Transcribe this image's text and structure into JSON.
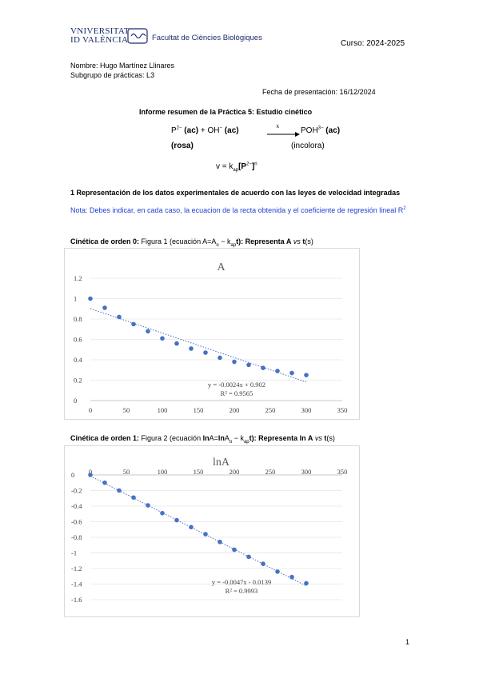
{
  "header": {
    "university_line1": "VNIVERSITAT",
    "university_line2": "ID VALÈNCIA",
    "faculty": "Facultat de Ciències Biològiques",
    "course": "Curso: 2024-2025"
  },
  "student": {
    "name": "Nombre: Hugo Martínez Llinares",
    "subgroup": "Subgrupo de prácticas: L3"
  },
  "date": "Fecha de presentación: 16/12/2024",
  "title": "Informe resumen de la Práctica 5: Estudio cinético",
  "reaction": {
    "r1": "P",
    "r1_charge": "2−",
    "r1_state": "(ac)",
    "plus": "+ OH",
    "r2_charge": "−",
    "r2_state": "(ac)",
    "arrow_label": "k",
    "product": "POH",
    "p_charge": "3−",
    "p_state": "(ac)",
    "r_color": "(rosa)",
    "p_color": "(incolora)"
  },
  "rate_law": {
    "lhs": "v = k",
    "sub": "ap",
    "bracket": "[P",
    "charge": "2−",
    "close": "]",
    "exp": "n"
  },
  "section": {
    "heading": "1 Representación de los datos experimentales  de acuerdo con las leyes de velocidad integradas",
    "note": "Nota: Debes indicar, en cada caso, la ecuacion de la recta obtenida y el coeficiente de regresión lineal R",
    "note_sup": "2"
  },
  "fig1_caption": {
    "bold": "Cinética de orden 0:",
    "text1": " Figura 1 (ecuación  A=A",
    "sub0": "o",
    "text2": " − k",
    "sub1": "ap",
    "text3": "t): Representa ",
    "bold2": "A",
    "text4": " vs ",
    "bold3": "t",
    "text5": "(s)"
  },
  "fig2_caption": {
    "bold": "Cinética de orden 1:",
    "text1": " Figura 2 (ecuación  ",
    "bold1": "ln",
    "text2": "A=",
    "bold1b": "ln",
    "text2b": "A",
    "sub0": "o",
    "text3": " − k",
    "sub1": "ap",
    "text4": "t): Representa ",
    "bold2": "ln A",
    "text5": " vs ",
    "bold3": "t",
    "text6": "(s)"
  },
  "page_number": "1",
  "chart_data": [
    {
      "type": "scatter",
      "title": "A",
      "x": [
        0,
        20,
        40,
        60,
        80,
        100,
        120,
        140,
        160,
        180,
        200,
        220,
        240,
        260,
        280,
        300
      ],
      "y": [
        1.0,
        0.91,
        0.82,
        0.75,
        0.68,
        0.61,
        0.56,
        0.51,
        0.47,
        0.42,
        0.38,
        0.35,
        0.32,
        0.29,
        0.27,
        0.25
      ],
      "xlim": [
        0,
        350
      ],
      "ylim": [
        0,
        1.2
      ],
      "xticks": [
        "0",
        "50",
        "100",
        "150",
        "200",
        "250",
        "300",
        "350"
      ],
      "yticks": [
        "0",
        "0.2",
        "0.4",
        "0.6",
        "0.8",
        "1",
        "1.2"
      ],
      "trendline": {
        "slope": -0.0024,
        "intercept": 0.902
      },
      "equation": "y = -0.0024x + 0.902",
      "r2": "R² = 0.9565",
      "grid": true,
      "color": "#4472c4"
    },
    {
      "type": "scatter",
      "title": "lnA",
      "x": [
        0,
        20,
        40,
        60,
        80,
        100,
        120,
        140,
        160,
        180,
        200,
        220,
        240,
        260,
        280,
        300
      ],
      "y": [
        0,
        -0.1,
        -0.2,
        -0.29,
        -0.39,
        -0.49,
        -0.58,
        -0.67,
        -0.76,
        -0.86,
        -0.96,
        -1.05,
        -1.14,
        -1.24,
        -1.31,
        -1.39
      ],
      "xlim": [
        0,
        350
      ],
      "ylim": [
        -1.6,
        0
      ],
      "xticks": [
        "0",
        "50",
        "100",
        "150",
        "200",
        "250",
        "300",
        "350"
      ],
      "yticks": [
        "0",
        "-0.2",
        "-0.4",
        "-0.6",
        "-0.8",
        "-1",
        "-1.2",
        "-1.4",
        "-1.6"
      ],
      "trendline": {
        "slope": -0.0047,
        "intercept": -0.0139
      },
      "equation": "y = -0.0047x - 0.0139",
      "r2": "R² = 0.9993",
      "grid": true,
      "color": "#4472c4"
    }
  ]
}
